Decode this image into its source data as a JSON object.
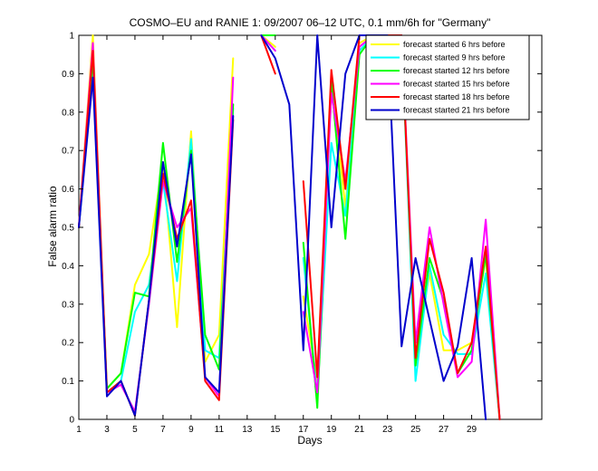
{
  "chart_data": {
    "type": "line",
    "title": "COSMO–EU and RANIE 1: 09/2007 06–12 UTC, 0.1 mm/6h for \"Germany\"",
    "xlabel": "Days",
    "ylabel": "False alarm ratio",
    "xlim": [
      1,
      34
    ],
    "ylim": [
      0,
      1
    ],
    "xticks": [
      1,
      3,
      5,
      7,
      9,
      11,
      13,
      15,
      17,
      19,
      21,
      23,
      25,
      27,
      29
    ],
    "yticks": [
      0,
      0.1,
      0.2,
      0.3,
      0.4,
      0.5,
      0.6,
      0.7,
      0.8,
      0.9,
      1
    ],
    "ytick_labels": [
      "0",
      "0.1",
      "0.2",
      "0.3",
      "0.4",
      "0.5",
      "0.6",
      "0.7",
      "0.8",
      "0.9",
      "1"
    ],
    "grid": false,
    "legend_position": "top-right",
    "x": [
      1,
      2,
      3,
      4,
      5,
      6,
      7,
      8,
      9,
      10,
      11,
      12,
      13,
      14,
      15,
      16,
      17,
      18,
      19,
      20,
      21,
      22,
      23,
      24,
      25,
      26,
      27,
      28,
      29,
      30,
      31
    ],
    "series": [
      {
        "name": "forecast started 6 hrs before",
        "color": "#ffff00",
        "values": [
          0.5,
          1.0,
          0.08,
          0.12,
          0.35,
          0.43,
          0.67,
          0.24,
          0.75,
          0.15,
          0.22,
          0.94,
          null,
          1.0,
          0.97,
          null,
          0.32,
          0.1,
          0.9,
          0.55,
          0.98,
          1.0,
          1.0,
          1.0,
          0.17,
          0.38,
          0.18,
          0.18,
          0.2,
          0.42,
          0.0
        ]
      },
      {
        "name": "forecast started 9 hrs before",
        "color": "#00ffff",
        "values": [
          0.5,
          0.91,
          0.07,
          0.1,
          0.28,
          0.35,
          0.62,
          0.36,
          0.73,
          0.18,
          0.16,
          0.81,
          null,
          1.0,
          0.96,
          null,
          0.42,
          0.06,
          0.72,
          0.53,
          0.96,
          1.0,
          1.0,
          1.0,
          0.1,
          0.4,
          0.22,
          0.17,
          0.17,
          0.38,
          0.0
        ]
      },
      {
        "name": "forecast started 12 hrs before",
        "color": "#00ff00",
        "values": [
          0.5,
          0.94,
          0.08,
          0.12,
          0.33,
          0.32,
          0.72,
          0.41,
          0.7,
          0.22,
          0.13,
          0.82,
          null,
          1.0,
          1.0,
          null,
          0.46,
          0.03,
          0.88,
          0.47,
          0.95,
          1.0,
          1.0,
          1.0,
          0.14,
          0.42,
          0.31,
          0.12,
          0.18,
          0.43,
          0.0
        ]
      },
      {
        "name": "forecast started 15 hrs before",
        "color": "#ff00ff",
        "values": [
          0.5,
          0.98,
          0.07,
          0.09,
          0.02,
          0.3,
          0.62,
          0.5,
          0.55,
          0.11,
          0.06,
          0.89,
          null,
          1.0,
          0.96,
          null,
          0.28,
          0.07,
          0.85,
          0.62,
          0.97,
          1.0,
          1.0,
          1.0,
          0.2,
          0.5,
          0.3,
          0.11,
          0.15,
          0.52,
          0.0
        ]
      },
      {
        "name": "forecast started 18 hrs before",
        "color": "#ff0000",
        "values": [
          0.5,
          0.96,
          0.07,
          0.1,
          0.01,
          0.31,
          0.64,
          0.47,
          0.57,
          0.1,
          0.05,
          0.78,
          null,
          1.0,
          0.9,
          null,
          0.62,
          0.11,
          0.91,
          0.6,
          1.0,
          1.0,
          1.0,
          1.0,
          0.16,
          0.47,
          0.33,
          0.12,
          0.2,
          0.45,
          0.0
        ]
      },
      {
        "name": "forecast started 21 hrs before",
        "color": "#0000cc",
        "values": [
          0.5,
          0.89,
          0.06,
          0.1,
          0.01,
          0.31,
          0.67,
          0.45,
          0.69,
          0.11,
          0.07,
          0.79,
          null,
          1.0,
          0.94,
          0.82,
          0.18,
          1.0,
          0.5,
          0.9,
          1.0,
          1.0,
          1.0,
          0.19,
          0.42,
          0.26,
          0.1,
          0.19,
          0.42,
          0.0,
          null
        ]
      }
    ]
  }
}
